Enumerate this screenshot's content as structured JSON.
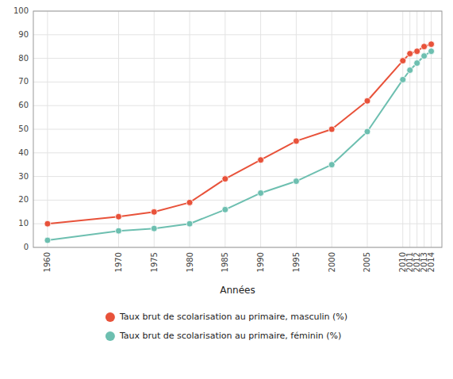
{
  "chart_data": {
    "type": "line",
    "xlabel": "Années",
    "x": [
      1960,
      1970,
      1975,
      1980,
      1985,
      1990,
      1995,
      2000,
      2005,
      2010,
      2011,
      2012,
      2013,
      2014
    ],
    "series": [
      {
        "name": "Taux brut de scolarisation au primaire, masculin (%)",
        "color": "#e8523a",
        "values": [
          10,
          13,
          15,
          19,
          29,
          37,
          45,
          50,
          62,
          79,
          82,
          83,
          85,
          86
        ]
      },
      {
        "name": "Taux brut de scolarisation au primaire, féminin (%)",
        "color": "#6dbfb0",
        "values": [
          3,
          7,
          8,
          10,
          16,
          23,
          28,
          35,
          49,
          71,
          75,
          78,
          81,
          83
        ]
      }
    ],
    "xlim": [
      1958,
      2015.5
    ],
    "xticks": [
      1960,
      1970,
      1975,
      1980,
      1985,
      1990,
      1995,
      2000,
      2005,
      2010,
      2011,
      2012,
      2013,
      2014
    ],
    "ylim": [
      0,
      100
    ],
    "yticks": [
      0,
      10,
      20,
      30,
      40,
      50,
      60,
      70,
      80,
      90,
      100
    ],
    "grid": true,
    "legend": "bottom",
    "marker": "circle"
  }
}
